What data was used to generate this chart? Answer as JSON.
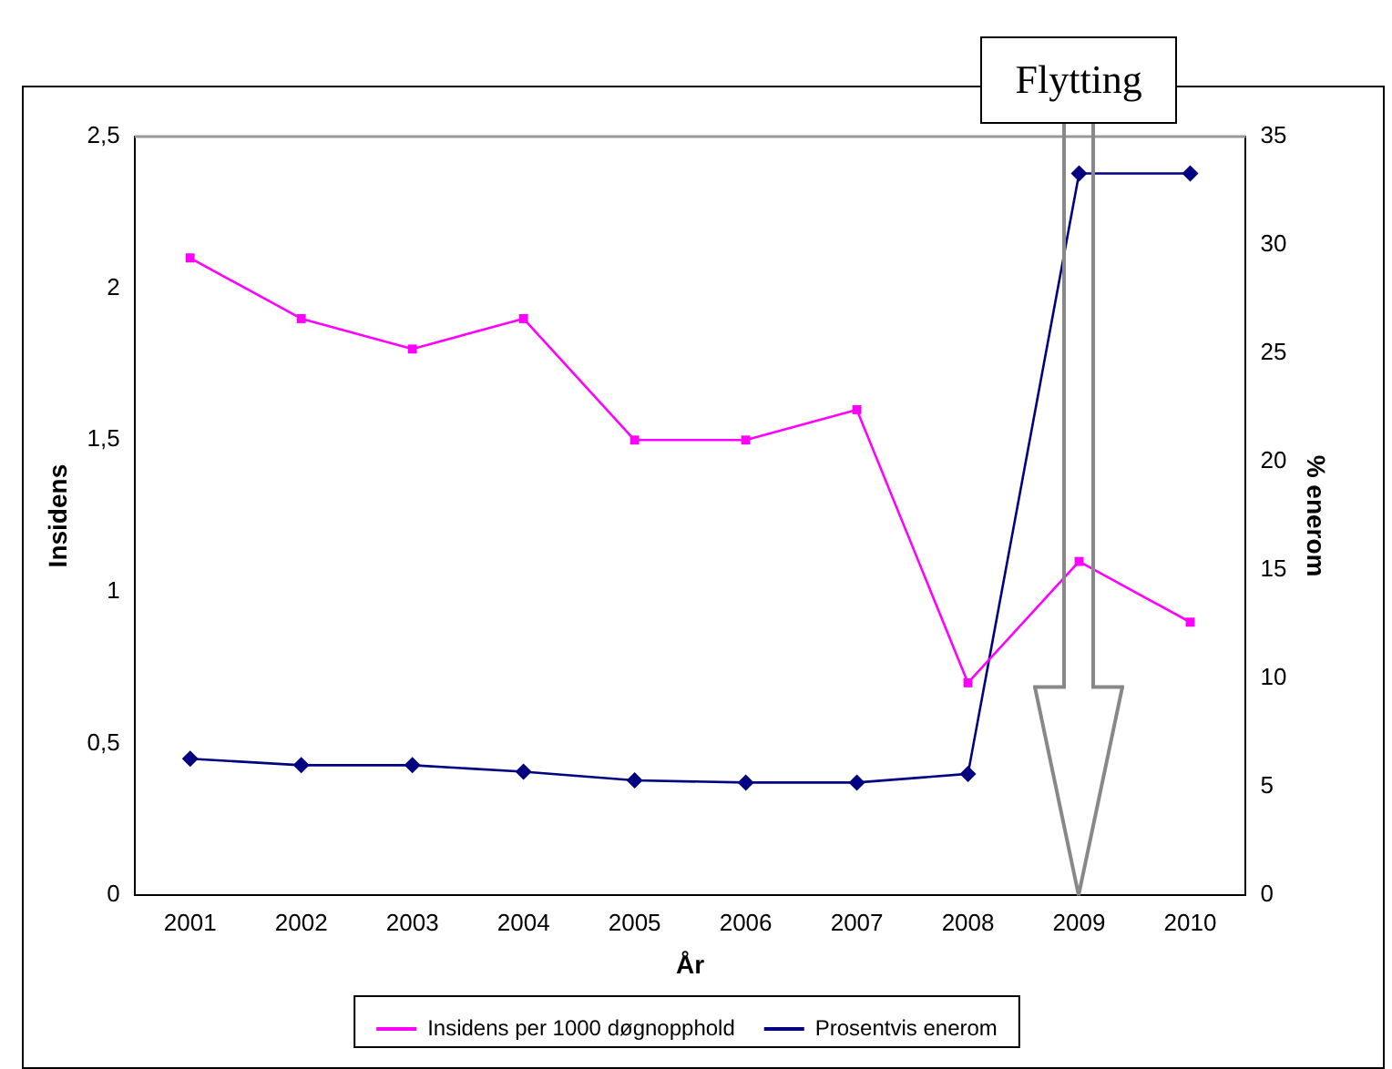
{
  "chart_data": {
    "type": "line",
    "xlabel": "År",
    "ylabel": "Insidens",
    "y2label": "% enerom",
    "categories": [
      "2001",
      "2002",
      "2003",
      "2004",
      "2005",
      "2006",
      "2007",
      "2008",
      "2009",
      "2010"
    ],
    "series": [
      {
        "name": "Insidens per 1000 døgnopphold",
        "color": "#ff00ff",
        "marker": "square",
        "values": [
          2.1,
          1.9,
          1.8,
          1.9,
          1.5,
          1.5,
          1.6,
          0.7,
          1.1,
          0.9
        ]
      },
      {
        "name": "Prosentvis enerom",
        "color": "#000080",
        "marker": "diamond",
        "axis": "y2",
        "values": [
          6.3,
          6.0,
          6.0,
          5.7,
          5.3,
          5.2,
          5.2,
          5.6,
          33.3,
          33.3
        ]
      }
    ],
    "ylim": [
      0,
      2.5
    ],
    "yticks": [
      0,
      {
        "value": 0.5,
        "label": "0,5"
      },
      1,
      {
        "value": 1.5,
        "label": "1,5"
      },
      2,
      {
        "value": 2.5,
        "label": "2,5"
      }
    ],
    "y2lim": [
      0,
      35
    ],
    "y2ticks": [
      0,
      5,
      10,
      15,
      20,
      25,
      30,
      35
    ],
    "grid": false,
    "legend": "bottom",
    "line_style": "solid",
    "annotations": [
      "Flytting"
    ]
  }
}
